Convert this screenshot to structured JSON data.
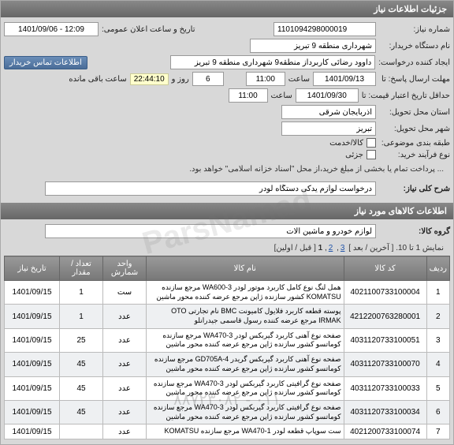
{
  "headers": {
    "main": "جزئیات اطلاعات نیاز",
    "contact": "اطلاعات تماس خریدار",
    "goods": "اطلاعات کالاهای مورد نیاز"
  },
  "labels": {
    "need_no": "شماره نیاز:",
    "buyer_name": "نام دستگاه خریدار:",
    "creator": "ایجاد کننده درخواست:",
    "reply_deadline": "مهلت ارسال پاسخ: تا",
    "min_valid_date": "حداقل تاریخ اعتبار قیمت: تا",
    "province": "استان محل تحویل:",
    "city": "شهر محل تحویل:",
    "topic_class": "طبقه بندی موضوعی:",
    "buy_process": "نوع فرآیند خرید:",
    "need_desc": "شرح کلی نیاز:",
    "goods_group": "گروه کالا:",
    "pub_date": "تاریخ و ساعت اعلان عمومی:",
    "hour": "ساعت",
    "day_and": "روز و",
    "remaining": "ساعت باقی مانده",
    "goods_chk": "کالا/خدمت",
    "partial_chk": "جزئی",
    "note": "... پرداخت تمام یا بخشی از مبلغ خرید،از محل \"اسناد خزانه اسلامی\" خواهد بود."
  },
  "values": {
    "need_no": "1101094298000019",
    "buyer_name": "شهرداری منطقه 9 تبریز",
    "creator": "داوود رضائی کاربرداز منطقه9 شهرداری منطقه 9 تبریز",
    "reply_date": "1401/09/13",
    "reply_time": "11:00",
    "days": "6",
    "countdown": "22:44:10",
    "valid_date": "1401/09/30",
    "valid_time": "11:00",
    "province": "آذربایجان شرقی",
    "city": "تبریز",
    "pub_date": "1401/09/06 - 12:09",
    "need_desc": "درخواست لوازم یدکی دستگاه لودر",
    "goods_group": "لوازم خودرو و ماشین آلات"
  },
  "pagination": {
    "text1": "نمایش 1 تا 10. [ آخرین / بعد ]",
    "text2": "[ قبل / اولین]",
    "p2": "2",
    "p3": "3",
    "current": "1"
  },
  "table": {
    "columns": [
      "ردیف",
      "کد کالا",
      "نام کالا",
      "واحد شمارش",
      "تعداد / مقدار",
      "تاریخ نیاز"
    ],
    "rows": [
      [
        "1",
        "4021100733100004",
        "همل لنگ نوع کامل کاربرد موتور لودر WA600-3 مرجع سازنده KOMATSU کشور سازنده ژاپن مرجع عرضه کننده محور ماشین",
        "ست",
        "1",
        "1401/09/15"
      ],
      [
        "2",
        "4212200763280001",
        "پوسته قطعه کاربرد فلایول کامیونت BMC نام تجارتی OTO IRMAK مرجع عرضه کننده رسول قاسمی جیدرانلو",
        "عدد",
        "1",
        "1401/09/15"
      ],
      [
        "3",
        "4031120733100051",
        "صفحه نوع آهنی کاربرد گیربکس لودر WA470-3 مرجع سازنده کوماتسو کشور سازنده ژاپن مرجع عرضه کننده محور ماشین",
        "عدد",
        "25",
        "1401/09/15"
      ],
      [
        "4",
        "4031120733100070",
        "صفحه نوع آهنی کاربرد گیربکس گریدر GD705A-4 مرجع سازنده کوماتسو کشور سازنده ژاپن مرجع عرضه کننده محور ماشین",
        "عدد",
        "45",
        "1401/09/15"
      ],
      [
        "5",
        "4031120733100033",
        "صفحه نوع گرافیتی کاربرد گیربکس لودر WA470-3 مرجع سازنده کوماتسو کشور سازنده ژاپن مرجع عرضه کننده محور ماشین",
        "عدد",
        "45",
        "1401/09/15"
      ],
      [
        "6",
        "4031120733100034",
        "صفحه نوع گرافیتی کاربرد گیربکس لودر WA470-3 مرجع سازنده کوماتسو کشور سازنده ژاپن مرجع عرضه کننده محور ماشین",
        "عدد",
        "45",
        "1401/09/15"
      ],
      [
        "7",
        "4021200733100074",
        "ست سوپاپ قطعه لودر WA470-1 مرجع سازنده KOMATSU",
        "عدد",
        "",
        "1401/09/15"
      ]
    ]
  },
  "watermark": "ParsNamad",
  "watermark2": "٠١١ - ٨٨٧٢٣٠٨٢"
}
